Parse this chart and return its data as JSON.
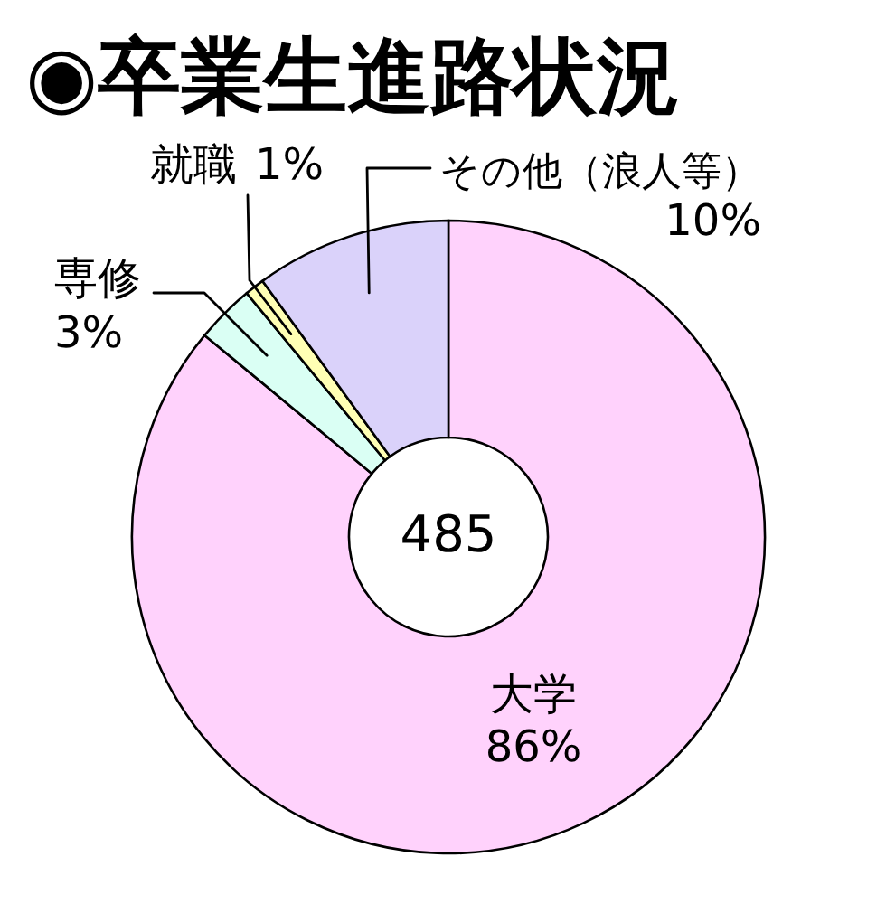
{
  "chart_data": {
    "type": "donut",
    "title": "◉卒業生進路状況",
    "categories": [
      "大学",
      "専修",
      "就職",
      "その他（浪人等）"
    ],
    "values": [
      86,
      3,
      1,
      10
    ],
    "colors": [
      "#ffd2fc",
      "#dafff4",
      "#ffffb4",
      "#dad2fa"
    ],
    "value_labels": [
      "86%",
      "3%",
      "1%",
      "10%"
    ],
    "annotations": [
      "485"
    ]
  }
}
